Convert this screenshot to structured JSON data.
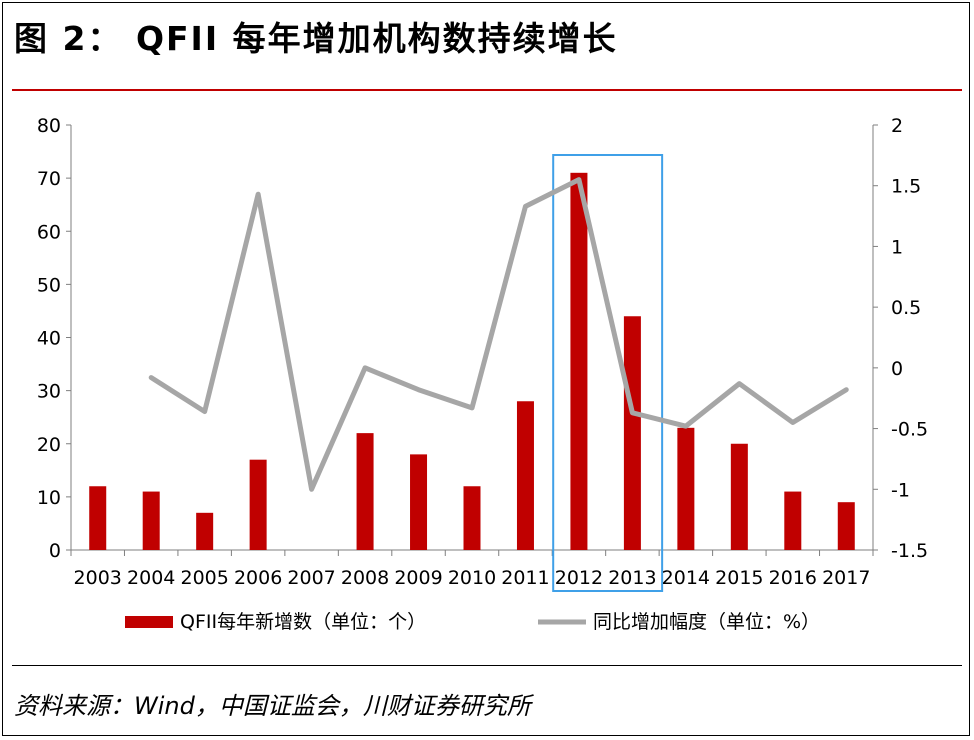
{
  "title": "图 2： QFII 每年增加机构数持续增长",
  "source": "资料来源：Wind，中国证监会，川财证券研究所",
  "colors": {
    "bar": "#c00000",
    "line": "#a6a6a6",
    "highlight": "#3fa0e8",
    "rule": "#c00000"
  },
  "chart_data": {
    "type": "bar",
    "categories": [
      "2003",
      "2004",
      "2005",
      "2006",
      "2007",
      "2008",
      "2009",
      "2010",
      "2011",
      "2012",
      "2013",
      "2014",
      "2015",
      "2016",
      "2017"
    ],
    "series": [
      {
        "name": "QFII每年新增数（单位：个）",
        "type": "bar",
        "axis": "left",
        "values": [
          12,
          11,
          7,
          17,
          0,
          22,
          18,
          12,
          28,
          71,
          44,
          23,
          20,
          11,
          9
        ]
      },
      {
        "name": "同比增加幅度（单位：%）",
        "type": "line",
        "axis": "right",
        "values": [
          null,
          -0.08,
          -0.36,
          1.43,
          -1.0,
          0.0,
          -0.18,
          -0.33,
          1.33,
          1.55,
          -0.37,
          -0.48,
          -0.13,
          -0.45,
          -0.18
        ]
      }
    ],
    "left_axis": {
      "min": 0,
      "max": 80,
      "ticks": [
        "0",
        "10",
        "20",
        "30",
        "40",
        "50",
        "60",
        "70",
        "80"
      ]
    },
    "right_axis": {
      "min": -1.5,
      "max": 2,
      "ticks": [
        "-1.5",
        "-1",
        "-0.5",
        "0",
        "0.5",
        "1",
        "1.5",
        "2"
      ]
    },
    "highlight_categories": [
      "2012",
      "2013"
    ],
    "legend_position": "bottom",
    "grid": false
  }
}
